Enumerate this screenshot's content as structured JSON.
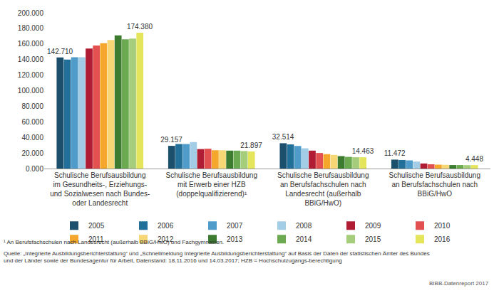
{
  "chart_data": {
    "type": "bar",
    "categories": [
      "Schulische Berufsausbildung im Gesundheits-, Erziehungs- und Sozialwesen nach Bundes- oder Landesrecht",
      "Schulische Berufsausbildung mit Erwerb einer HZB (doppelqualifizierend)¹",
      "Schulische Berufsausbildung an Berufsfachschulen nach Landesrecht (außerhalb BBiG/HwO)",
      "Schulische Berufsausbildung an Berufsfachschulen nach BBiG/HwO"
    ],
    "series": [
      {
        "name": "2005",
        "color": "#1b4f6b",
        "values": [
          142710,
          29157,
          32514,
          11472
        ],
        "value_labels": [
          "142.710",
          "29.157",
          "32.514",
          "11.472"
        ]
      },
      {
        "name": "2006",
        "color": "#22709a",
        "values": [
          140000,
          31500,
          31000,
          11000
        ]
      },
      {
        "name": "2007",
        "color": "#4f9ccb",
        "values": [
          143000,
          31500,
          29000,
          10500
        ]
      },
      {
        "name": "2008",
        "color": "#a3cde6",
        "values": [
          143000,
          34000,
          26000,
          9000
        ]
      },
      {
        "name": "2009",
        "color": "#b01c33",
        "values": [
          154000,
          25000,
          23000,
          6500
        ]
      },
      {
        "name": "2010",
        "color": "#e2514f",
        "values": [
          158000,
          25500,
          20000,
          5500
        ]
      },
      {
        "name": "2011",
        "color": "#f4a72a",
        "values": [
          161000,
          23500,
          18500,
          5000
        ]
      },
      {
        "name": "2012",
        "color": "#f6d675",
        "values": [
          165000,
          23500,
          17500,
          4800
        ]
      },
      {
        "name": "2013",
        "color": "#3d7b31",
        "values": [
          171000,
          23000,
          16000,
          4500
        ]
      },
      {
        "name": "2014",
        "color": "#6caa52",
        "values": [
          166000,
          23000,
          15000,
          4500
        ]
      },
      {
        "name": "2015",
        "color": "#a6cd7c",
        "values": [
          167000,
          22500,
          14500,
          4400
        ]
      },
      {
        "name": "2016",
        "color": "#e5e55c",
        "values": [
          174380,
          21897,
          14463,
          4448
        ],
        "value_labels": [
          "174.380",
          "21.897",
          "14.463",
          "4.448"
        ]
      }
    ],
    "ylim": [
      0,
      200000
    ],
    "yticks": [
      {
        "value": 0,
        "label": "0.000"
      },
      {
        "value": 20000,
        "label": "20.000"
      },
      {
        "value": 40000,
        "label": "40.000"
      },
      {
        "value": 60000,
        "label": "60.000"
      },
      {
        "value": 80000,
        "label": "80.000"
      },
      {
        "value": 100000,
        "label": "100.000"
      },
      {
        "value": 120000,
        "label": "120.000"
      },
      {
        "value": 140000,
        "label": "140.000"
      },
      {
        "value": 160000,
        "label": "160.000"
      },
      {
        "value": 180000,
        "label": "180.000"
      },
      {
        "value": 200000,
        "label": "200.000"
      }
    ],
    "grid": false,
    "legend": "bottom",
    "data_labels": true,
    "annotations": [
      "¹ An Berufsfachschulen nach Landesrecht (außerhalb BBiG/HwO) und Fachgymnasien.",
      "Quelle: „Integrierte Ausbildungsberichterstattung“ und „Schnellmeldung Integrierte Ausbildungsberichterstattung“ auf Basis der Daten der statistischen Ämter des Bundes und der Länder sowie der Bundesagentur für Arbeit, Datenstand: 18.11.2016 und 14.03.2017; HZB = Hochschulzugangs-berechtigung",
      "BIBB-Datenreport 2017"
    ]
  }
}
